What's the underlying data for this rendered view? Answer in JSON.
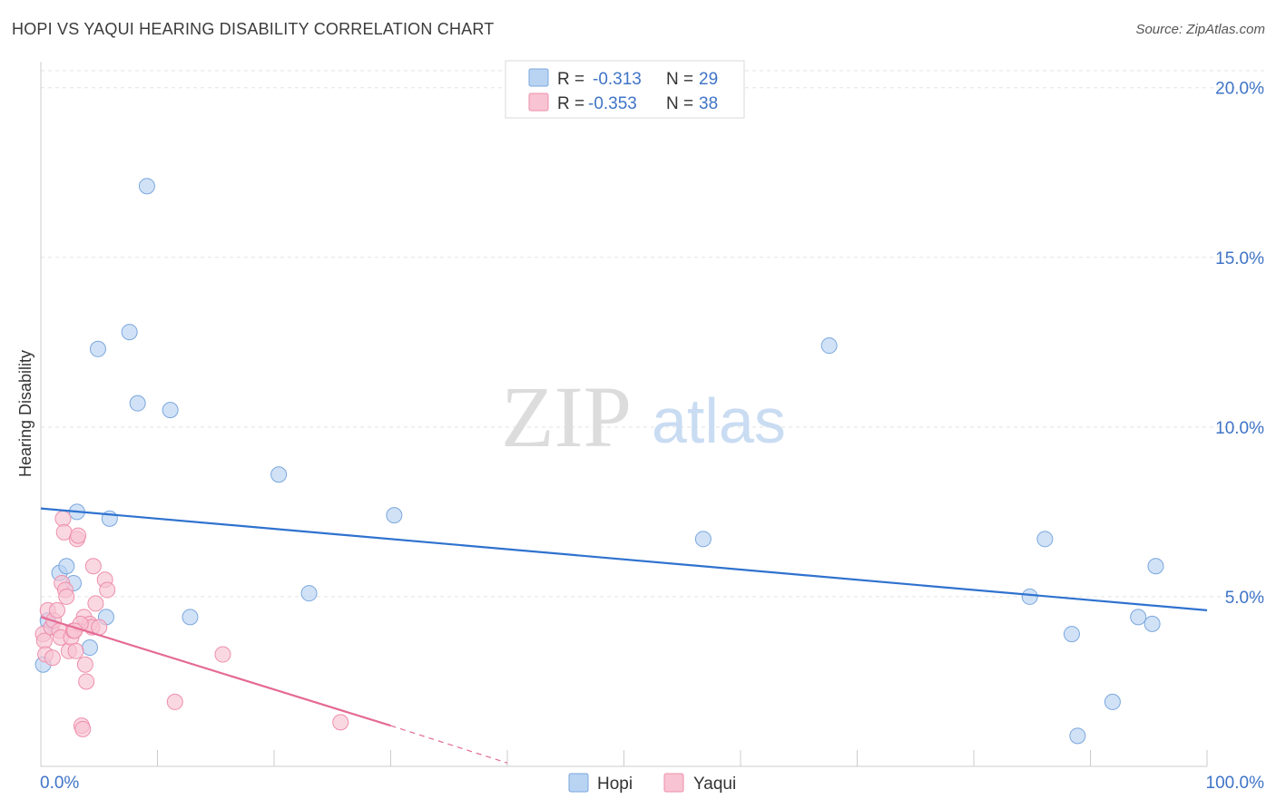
{
  "header": {
    "title": "HOPI VS YAQUI HEARING DISABILITY CORRELATION CHART",
    "source": "Source: ZipAtlas.com"
  },
  "watermark": {
    "zip": "ZIP",
    "atlas": "atlas"
  },
  "colors": {
    "hopi_fill": "#b9d3f3",
    "hopi_stroke": "#7aa7de",
    "hopi_line": "#2f72cf",
    "yaqui_fill": "#f8c3d2",
    "yaqui_stroke": "#ee8fac",
    "yaqui_line": "#e46a94",
    "grid": "#e3e3e3",
    "axis": "#cccccc",
    "tick_text": "#3f74c7"
  },
  "legend": {
    "hopi": {
      "r_label": "R =",
      "r_value": "-0.313",
      "n_label": "N =",
      "n_value": "29"
    },
    "yaqui": {
      "r_label": "R =",
      "r_value": "-0.353",
      "n_label": "N =",
      "n_value": "38"
    }
  },
  "chart_data": {
    "type": "scatter",
    "title": "HOPI VS YAQUI HEARING DISABILITY CORRELATION CHART",
    "xlabel": "",
    "ylabel": "Hearing Disability",
    "xlim": [
      0,
      100
    ],
    "ylim": [
      0,
      20.5
    ],
    "x_tick_labels": [
      "0.0%",
      "100.0%"
    ],
    "y_ticks": [
      5,
      10,
      15,
      20
    ],
    "y_tick_labels": [
      "5.0%",
      "10.0%",
      "15.0%",
      "20.0%"
    ],
    "grid": true,
    "series": [
      {
        "name": "Hopi",
        "points": [
          [
            0.6,
            4.3
          ],
          [
            0.9,
            4.1
          ],
          [
            1.6,
            5.7
          ],
          [
            2.2,
            5.9
          ],
          [
            2.8,
            5.4
          ],
          [
            3.1,
            7.5
          ],
          [
            4.2,
            3.5
          ],
          [
            4.9,
            12.3
          ],
          [
            5.6,
            4.4
          ],
          [
            5.9,
            7.3
          ],
          [
            7.6,
            12.8
          ],
          [
            8.3,
            10.7
          ],
          [
            9.1,
            17.1
          ],
          [
            11.1,
            10.5
          ],
          [
            12.8,
            4.4
          ],
          [
            20.4,
            8.6
          ],
          [
            23.0,
            5.1
          ],
          [
            30.3,
            7.4
          ],
          [
            56.8,
            6.7
          ],
          [
            67.6,
            12.4
          ],
          [
            84.8,
            5.0
          ],
          [
            86.1,
            6.7
          ],
          [
            88.4,
            3.9
          ],
          [
            88.9,
            0.9
          ],
          [
            91.9,
            1.9
          ],
          [
            94.1,
            4.4
          ],
          [
            95.3,
            4.2
          ],
          [
            95.6,
            5.9
          ],
          [
            0.2,
            3.0
          ]
        ],
        "trend": {
          "x0": 0,
          "y0": 7.6,
          "x1": 100,
          "y1": 4.6
        }
      },
      {
        "name": "Yaqui",
        "points": [
          [
            0.2,
            3.9
          ],
          [
            0.3,
            3.7
          ],
          [
            0.4,
            3.3
          ],
          [
            0.6,
            4.6
          ],
          [
            0.9,
            4.1
          ],
          [
            1.1,
            4.3
          ],
          [
            1.4,
            4.6
          ],
          [
            1.6,
            4.0
          ],
          [
            1.7,
            3.8
          ],
          [
            1.8,
            5.4
          ],
          [
            1.9,
            7.3
          ],
          [
            2.0,
            6.9
          ],
          [
            2.1,
            5.2
          ],
          [
            2.2,
            5.0
          ],
          [
            2.4,
            3.4
          ],
          [
            2.6,
            3.8
          ],
          [
            2.8,
            4.0
          ],
          [
            3.0,
            3.4
          ],
          [
            3.1,
            6.7
          ],
          [
            3.2,
            6.8
          ],
          [
            3.5,
            1.2
          ],
          [
            3.6,
            1.1
          ],
          [
            3.7,
            4.4
          ],
          [
            3.8,
            3.0
          ],
          [
            3.9,
            2.5
          ],
          [
            4.2,
            4.2
          ],
          [
            4.4,
            4.1
          ],
          [
            4.5,
            5.9
          ],
          [
            4.7,
            4.8
          ],
          [
            5.0,
            4.1
          ],
          [
            5.5,
            5.5
          ],
          [
            5.7,
            5.2
          ],
          [
            3.4,
            4.2
          ],
          [
            2.9,
            4.0
          ],
          [
            1.0,
            3.2
          ],
          [
            11.5,
            1.9
          ],
          [
            15.6,
            3.3
          ],
          [
            25.7,
            1.3
          ]
        ],
        "trend": {
          "x0": 0,
          "y0": 4.4,
          "x1": 30,
          "y1": 1.2,
          "dash_to_x": 40,
          "dash_to_y": 0.1
        }
      }
    ]
  },
  "bottom_legend": [
    {
      "label": "Hopi"
    },
    {
      "label": "Yaqui"
    }
  ]
}
